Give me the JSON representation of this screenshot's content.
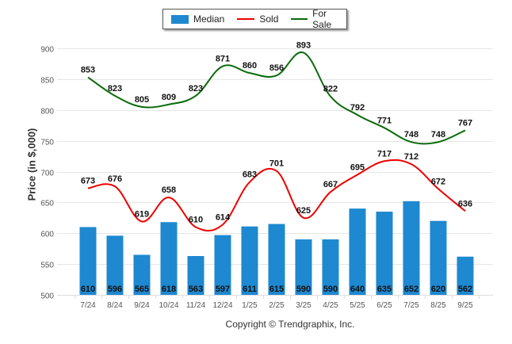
{
  "chart_data": {
    "type": "bar+line",
    "title": "",
    "xlabel": "",
    "ylabel": "Price (in $,000)",
    "ylim": [
      500,
      900
    ],
    "yticks": [
      500,
      550,
      600,
      650,
      700,
      750,
      800,
      850,
      900
    ],
    "grid": true,
    "legend_position": "top-center",
    "categories": [
      "7/24",
      "8/24",
      "9/24",
      "10/24",
      "11/24",
      "12/24",
      "1/25",
      "2/25",
      "3/25",
      "4/25",
      "5/25",
      "6/25",
      "7/25",
      "8/25",
      "9/25"
    ],
    "series": [
      {
        "name": "Median",
        "kind": "bar",
        "color": "#1e88d0",
        "values": [
          610,
          596,
          565,
          618,
          563,
          597,
          611,
          615,
          590,
          590,
          640,
          635,
          652,
          620,
          562
        ]
      },
      {
        "name": "Sold",
        "kind": "line",
        "color": "#ee0000",
        "values": [
          673,
          676,
          619,
          658,
          610,
          614,
          683,
          701,
          625,
          667,
          695,
          717,
          712,
          672,
          636
        ]
      },
      {
        "name": "For Sale",
        "kind": "line",
        "color": "#0a6b0a",
        "values": [
          853,
          823,
          805,
          809,
          823,
          871,
          860,
          856,
          893,
          822,
          792,
          771,
          748,
          748,
          767
        ]
      }
    ],
    "copyright": "Copyright © Trendgraphix, Inc."
  }
}
